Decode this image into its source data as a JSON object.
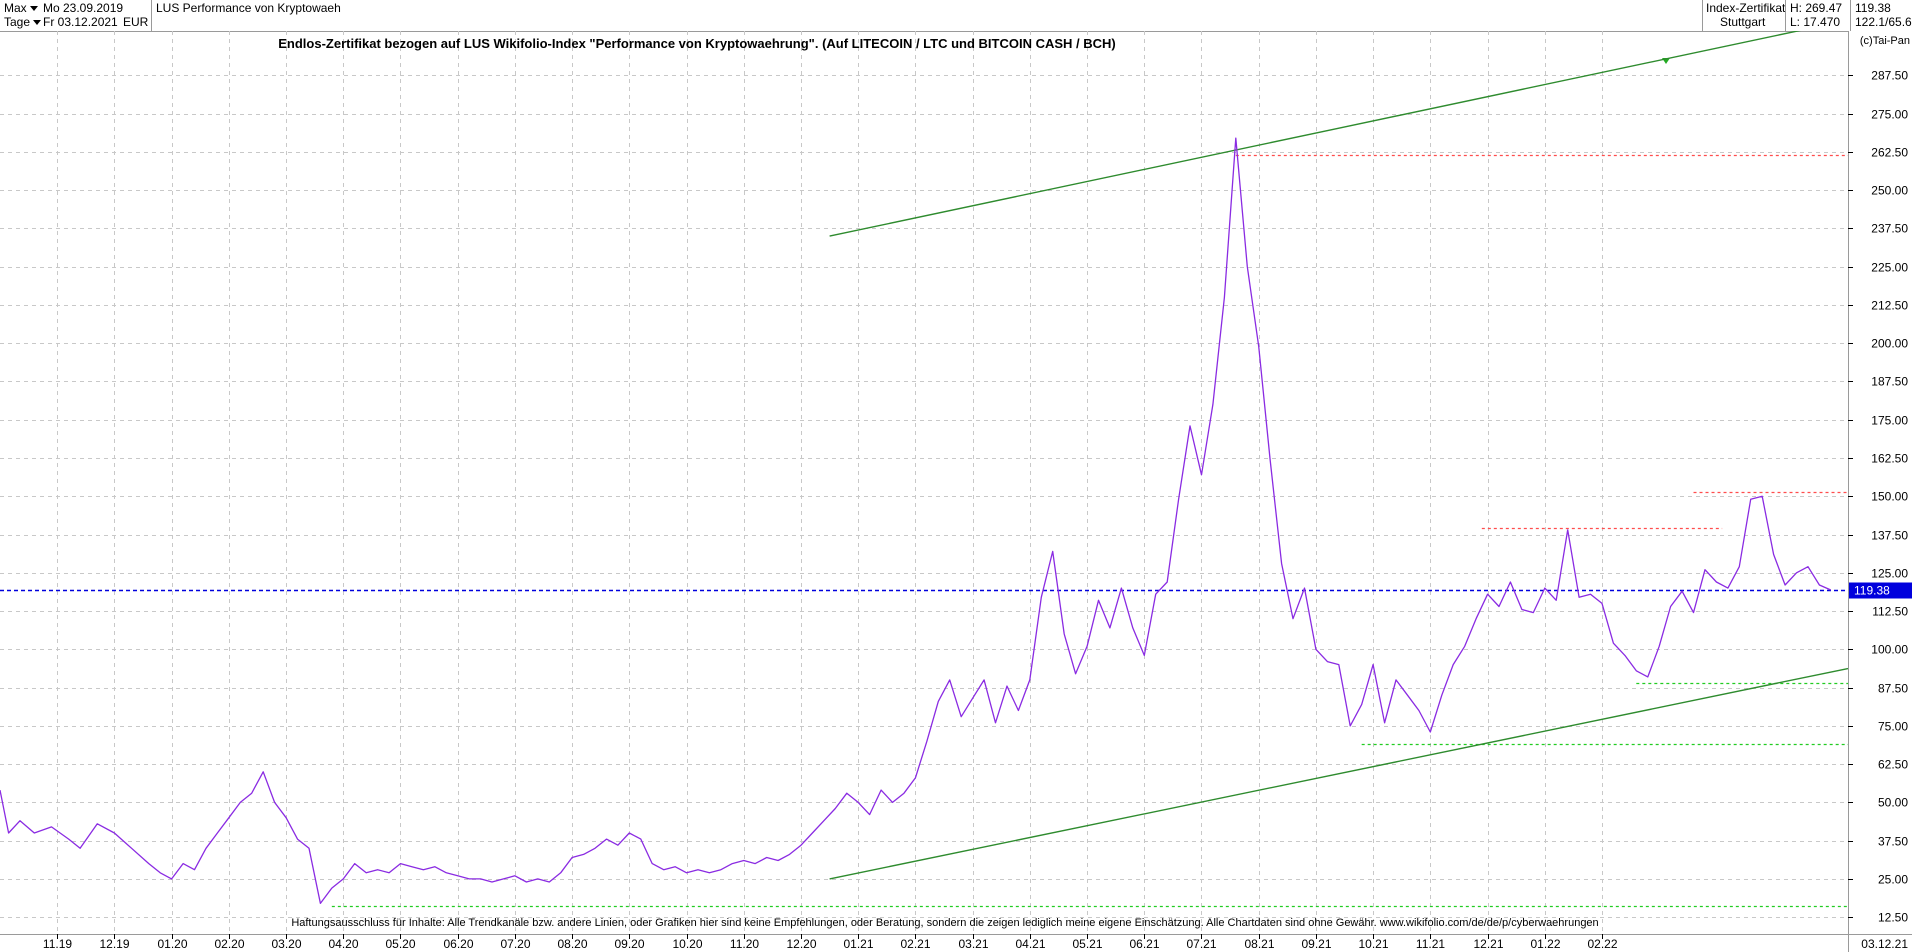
{
  "header": {
    "period_selector": "Max",
    "interval_selector": "Tage",
    "start_date": "Mo 23.09.2019",
    "end_date": "Fr 03.12.2021",
    "currency": "EUR",
    "instrument_name": "LUS Performance von Kryptowaeh",
    "instrument_type": "Index-Zertifikat",
    "exchange": "Stuttgart",
    "high_label": "H: 269.47",
    "low_label": "L: 17.470",
    "last_price": "119.38",
    "price_range": "122.1/65.6"
  },
  "chart_data": {
    "type": "line",
    "title": "Endlos-Zertifikat bezogen auf LUS Wikifolio-Index \"Performance von Kryptowaehrung\". (Auf LITECOIN / LTC und BITCOIN CASH / BCH)",
    "copyright": "(c)Tai-Pan",
    "disclaimer": "Haftungsausschluss für Inhalte: Alle Trendkanäle bzw. andere Linien, oder Grafiken hier sind keine Empfehlungen, oder Beratung, sondern die zeigen lediglich meine eigene Einschätzung. Alle Chartdaten sind ohne Gewähr.  www.wikifolio.com/de/de/p/cyberwaehrungen",
    "x_tick_labels": [
      "11.19",
      "12.19",
      "01.20",
      "02.20",
      "03.20",
      "04.20",
      "05.20",
      "06.20",
      "07.20",
      "08.20",
      "09.20",
      "10.20",
      "11.20",
      "12.20",
      "01.21",
      "02.21",
      "03.21",
      "04.21",
      "05.21",
      "06.21",
      "07.21",
      "08.21",
      "09.21",
      "10.21",
      "11.21",
      "12.21",
      "01.22",
      "02.22"
    ],
    "x_end_label": "03.12.21",
    "y_ticks": [
      12.5,
      25.0,
      37.5,
      50.0,
      62.5,
      75.0,
      87.5,
      100.0,
      112.5,
      125.0,
      137.5,
      150.0,
      162.5,
      175.0,
      187.5,
      200.0,
      212.5,
      225.0,
      237.5,
      250.0,
      262.5,
      275.0,
      287.5
    ],
    "ylim": [
      7,
      302
    ],
    "xlim": [
      0,
      32.3
    ],
    "grid": true,
    "series": [
      {
        "color": "#8a2be2",
        "points": [
          [
            0.0,
            54
          ],
          [
            0.15,
            40
          ],
          [
            0.35,
            44
          ],
          [
            0.6,
            40
          ],
          [
            0.9,
            42
          ],
          [
            1.2,
            38
          ],
          [
            1.4,
            35
          ],
          [
            1.7,
            43
          ],
          [
            2.0,
            40
          ],
          [
            2.3,
            35
          ],
          [
            2.6,
            30
          ],
          [
            2.8,
            27
          ],
          [
            3.0,
            25
          ],
          [
            3.2,
            30
          ],
          [
            3.4,
            28
          ],
          [
            3.6,
            35
          ],
          [
            3.8,
            40
          ],
          [
            4.0,
            45
          ],
          [
            4.2,
            50
          ],
          [
            4.4,
            53
          ],
          [
            4.6,
            60
          ],
          [
            4.8,
            50
          ],
          [
            5.0,
            45
          ],
          [
            5.2,
            38
          ],
          [
            5.4,
            35
          ],
          [
            5.6,
            17
          ],
          [
            5.8,
            22
          ],
          [
            6.0,
            25
          ],
          [
            6.2,
            30
          ],
          [
            6.4,
            27
          ],
          [
            6.6,
            28
          ],
          [
            6.8,
            27
          ],
          [
            7.0,
            30
          ],
          [
            7.2,
            29
          ],
          [
            7.4,
            28
          ],
          [
            7.6,
            29
          ],
          [
            7.8,
            27
          ],
          [
            8.0,
            26
          ],
          [
            8.2,
            25
          ],
          [
            8.4,
            25
          ],
          [
            8.6,
            24
          ],
          [
            8.8,
            25
          ],
          [
            9.0,
            26
          ],
          [
            9.2,
            24
          ],
          [
            9.4,
            25
          ],
          [
            9.6,
            24
          ],
          [
            9.8,
            27
          ],
          [
            10.0,
            32
          ],
          [
            10.2,
            33
          ],
          [
            10.4,
            35
          ],
          [
            10.6,
            38
          ],
          [
            10.8,
            36
          ],
          [
            11.0,
            40
          ],
          [
            11.2,
            38
          ],
          [
            11.4,
            30
          ],
          [
            11.6,
            28
          ],
          [
            11.8,
            29
          ],
          [
            12.0,
            27
          ],
          [
            12.2,
            28
          ],
          [
            12.4,
            27
          ],
          [
            12.6,
            28
          ],
          [
            12.8,
            30
          ],
          [
            13.0,
            31
          ],
          [
            13.2,
            30
          ],
          [
            13.4,
            32
          ],
          [
            13.6,
            31
          ],
          [
            13.8,
            33
          ],
          [
            14.0,
            36
          ],
          [
            14.2,
            40
          ],
          [
            14.4,
            44
          ],
          [
            14.6,
            48
          ],
          [
            14.8,
            53
          ],
          [
            15.0,
            50
          ],
          [
            15.2,
            46
          ],
          [
            15.4,
            54
          ],
          [
            15.6,
            50
          ],
          [
            15.8,
            53
          ],
          [
            16.0,
            58
          ],
          [
            16.2,
            70
          ],
          [
            16.4,
            83
          ],
          [
            16.6,
            90
          ],
          [
            16.8,
            78
          ],
          [
            17.0,
            84
          ],
          [
            17.2,
            90
          ],
          [
            17.4,
            76
          ],
          [
            17.6,
            88
          ],
          [
            17.8,
            80
          ],
          [
            18.0,
            90
          ],
          [
            18.2,
            117
          ],
          [
            18.4,
            132
          ],
          [
            18.6,
            105
          ],
          [
            18.8,
            92
          ],
          [
            19.0,
            101
          ],
          [
            19.2,
            116
          ],
          [
            19.4,
            107
          ],
          [
            19.6,
            120
          ],
          [
            19.8,
            107
          ],
          [
            20.0,
            98
          ],
          [
            20.2,
            118
          ],
          [
            20.4,
            122
          ],
          [
            20.6,
            149
          ],
          [
            20.8,
            173
          ],
          [
            21.0,
            157
          ],
          [
            21.2,
            180
          ],
          [
            21.4,
            215
          ],
          [
            21.6,
            267
          ],
          [
            21.8,
            225
          ],
          [
            22.0,
            199
          ],
          [
            22.2,
            162
          ],
          [
            22.4,
            128
          ],
          [
            22.6,
            110
          ],
          [
            22.8,
            120
          ],
          [
            23.0,
            100
          ],
          [
            23.2,
            96
          ],
          [
            23.4,
            95
          ],
          [
            23.6,
            75
          ],
          [
            23.8,
            82
          ],
          [
            24.0,
            95
          ],
          [
            24.2,
            76
          ],
          [
            24.4,
            90
          ],
          [
            24.6,
            85
          ],
          [
            24.8,
            80
          ],
          [
            25.0,
            73
          ],
          [
            25.2,
            85
          ],
          [
            25.4,
            95
          ],
          [
            25.6,
            101
          ],
          [
            25.8,
            110
          ],
          [
            26.0,
            118
          ],
          [
            26.2,
            114
          ],
          [
            26.4,
            122
          ],
          [
            26.6,
            113
          ],
          [
            26.8,
            112
          ],
          [
            27.0,
            120
          ],
          [
            27.2,
            116
          ],
          [
            27.4,
            139
          ],
          [
            27.6,
            117
          ],
          [
            27.8,
            118
          ],
          [
            28.0,
            115
          ],
          [
            28.2,
            102
          ],
          [
            28.4,
            98
          ],
          [
            28.6,
            93
          ],
          [
            28.8,
            91
          ],
          [
            29.0,
            101
          ],
          [
            29.2,
            114
          ],
          [
            29.4,
            119
          ],
          [
            29.6,
            112
          ],
          [
            29.8,
            126
          ],
          [
            30.0,
            122
          ],
          [
            30.2,
            120
          ],
          [
            30.4,
            127
          ],
          [
            30.6,
            149
          ],
          [
            30.8,
            150
          ],
          [
            31.0,
            131
          ],
          [
            31.2,
            121
          ],
          [
            31.4,
            125
          ],
          [
            31.6,
            127
          ],
          [
            31.8,
            121
          ],
          [
            32.0,
            119.38
          ]
        ]
      }
    ],
    "trendlines": [
      {
        "color": "#2e8b2e",
        "from": [
          14.5,
          235
        ],
        "to": [
          34.7,
          315
        ]
      },
      {
        "color": "#2e8b2e",
        "from": [
          14.5,
          25
        ],
        "to": [
          34.7,
          103
        ]
      }
    ],
    "dotted_levels": [
      {
        "color": "#ff4d4d",
        "value": 261.5,
        "x_from": 21.6,
        "x_to": 34.7
      },
      {
        "color": "#ff4d4d",
        "value": 139.5,
        "x_from": 25.9,
        "x_to": 30.1
      },
      {
        "color": "#ff4d4d",
        "value": 151.5,
        "x_from": 29.6,
        "x_to": 33.5
      },
      {
        "color": "#22cc22",
        "value": 89,
        "x_from": 28.6,
        "x_to": 32.8
      },
      {
        "color": "#22cc22",
        "value": 69,
        "x_from": 23.8,
        "x_to": 33.6
      },
      {
        "color": "#22cc22",
        "value": 16,
        "x_from": 5.8,
        "x_to": 34.7
      }
    ],
    "current_level": {
      "color": "#0000dd",
      "value": 119.38,
      "label": "119.38"
    }
  }
}
